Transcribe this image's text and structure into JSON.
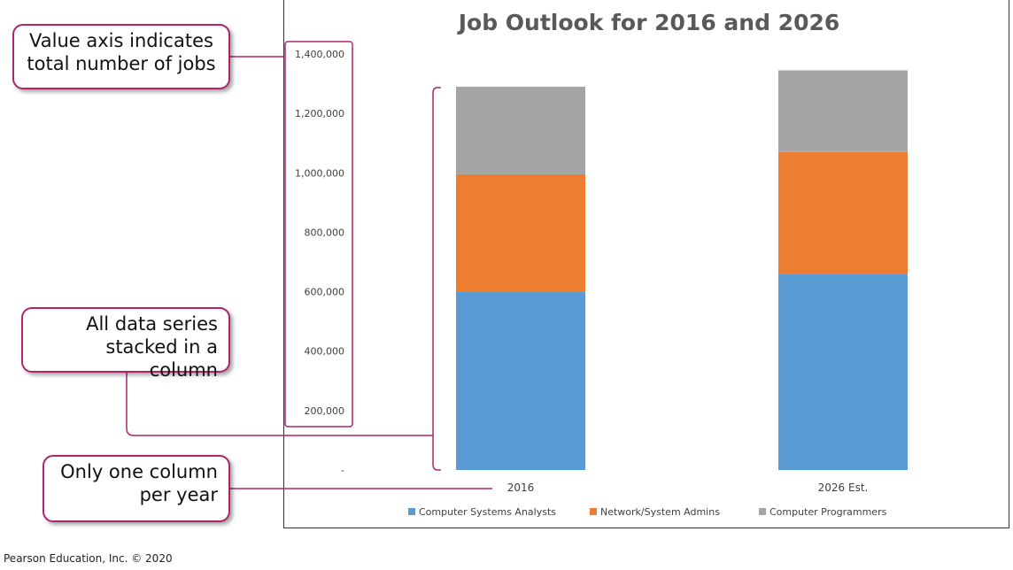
{
  "chart_data": {
    "type": "bar",
    "stacked": true,
    "title": "Job Outlook for 2016 and 2026",
    "categories": [
      "2016",
      "2026 Est."
    ],
    "series": [
      {
        "name": "Computer Systems Analysts",
        "values": [
          600000,
          660000
        ],
        "color": "#5b9bd5"
      },
      {
        "name": "Network/System Admins",
        "values": [
          395000,
          410000
        ],
        "color": "#ed7d31"
      },
      {
        "name": "Computer Programmers",
        "values": [
          295000,
          275000
        ],
        "color": "#a5a5a5"
      }
    ],
    "ylim": [
      0,
      1400000
    ],
    "yticks": [
      "-",
      "200,000",
      "400,000",
      "600,000",
      "800,000",
      "1,000,000",
      "1,200,000",
      "1,400,000"
    ],
    "grid": false,
    "legend_position": "bottom"
  },
  "callouts": {
    "value_axis": "Value axis indicates\ntotal number of jobs",
    "stacked": "All data series\nstacked in a column",
    "one_column": "Only one column\nper year"
  },
  "annotation_color": "#b0246e",
  "copyright": "Pearson Education, Inc. © 2020"
}
